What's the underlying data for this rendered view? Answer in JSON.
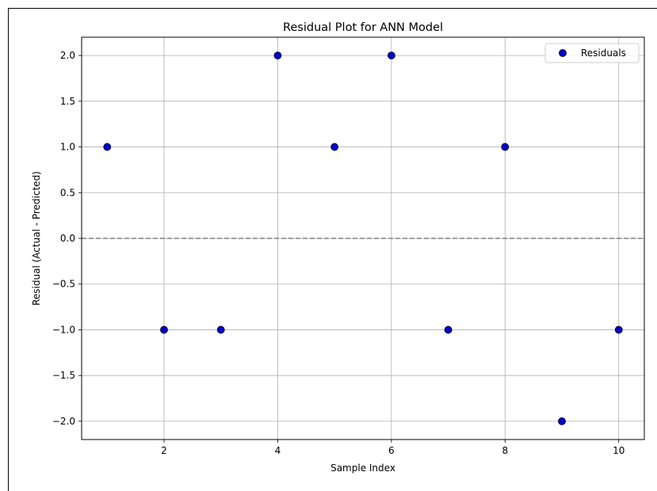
{
  "chart_data": {
    "type": "scatter",
    "title": "Residual Plot for ANN Model",
    "xlabel": "Sample Index",
    "ylabel": "Residual (Actual - Predicted)",
    "xlim": [
      0.55,
      10.45
    ],
    "ylim": [
      -2.2,
      2.2
    ],
    "xticks": [
      2,
      4,
      6,
      8,
      10
    ],
    "xtick_labels": [
      "2",
      "4",
      "6",
      "8",
      "10"
    ],
    "yticks": [
      2.0,
      1.5,
      1.0,
      0.5,
      0.0,
      -0.5,
      -1.0,
      -1.5,
      -2.0
    ],
    "ytick_labels": [
      "2.0",
      "1.5",
      "1.0",
      "0.5",
      "0.0",
      "−0.5",
      "−1.0",
      "−1.5",
      "−2.0"
    ],
    "grid": true,
    "reference_line": {
      "y": 0,
      "style": "dashed",
      "color": "#808080"
    },
    "legend": {
      "position": "top-right",
      "entries": [
        "Residuals"
      ]
    },
    "series": [
      {
        "name": "Residuals",
        "color": "#0000cc",
        "edge_color": "#000000",
        "x": [
          1,
          2,
          3,
          4,
          5,
          6,
          7,
          8,
          9,
          10
        ],
        "y": [
          1,
          -1,
          -1,
          2,
          1,
          2,
          -1,
          1,
          -2,
          -1
        ]
      }
    ]
  }
}
